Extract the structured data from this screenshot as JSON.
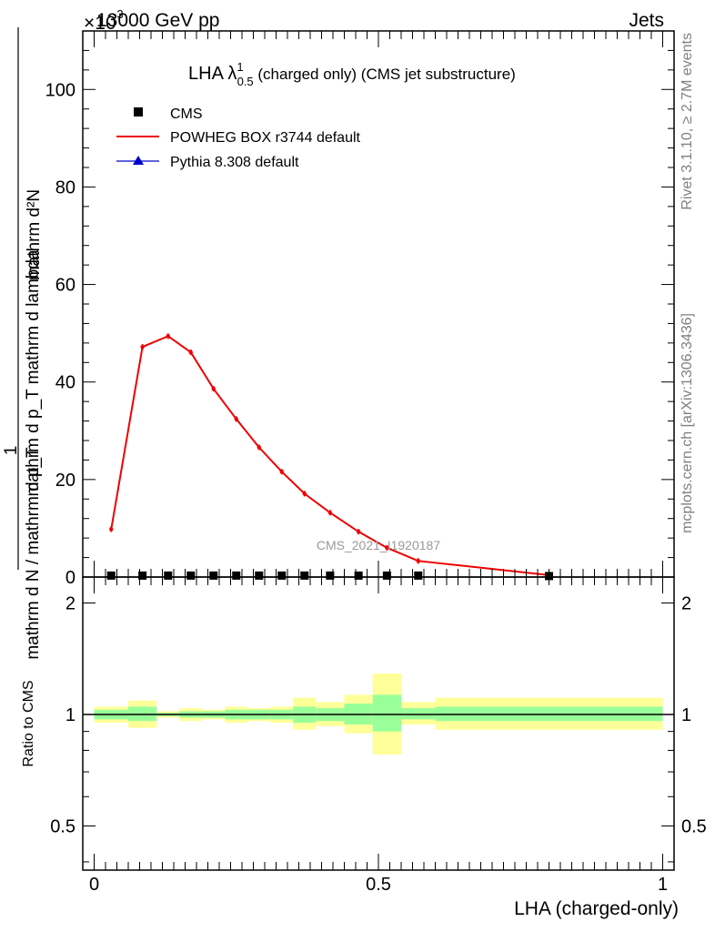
{
  "header": {
    "left": "13000 GeV pp",
    "right": "Jets",
    "scale_marker": "×10",
    "scale_exponent": "-3"
  },
  "side": {
    "rivet": "Rivet 3.1.10, ≥ 2.7M events",
    "mcplots": "mcplots.cern.ch [arXiv:1306.3436]"
  },
  "chart_data": [
    {
      "type": "line",
      "title_main": "LHA λ",
      "title_sup": "1",
      "title_sub": "0.5",
      "title_rest": " (charged only) (CMS jet substructure)",
      "ylabel_numerator": "mathrm d²N",
      "ylabel_denominator": "mathrm d p_T mathrm d lambda",
      "ylabel_prefix_num": "1",
      "ylabel_prefix_den": "mathrm d N / mathrm d p_T",
      "y_scale_note": "×10^-3",
      "ylim": [
        0,
        112
      ],
      "xlim": [
        -0.02,
        1.02
      ],
      "yticks": [
        0,
        20,
        40,
        60,
        80,
        100
      ],
      "watermark": "CMS_2021_I1920187",
      "legend_position": "top-left",
      "series": [
        {
          "name": "CMS",
          "color": "#000000",
          "marker": "square",
          "x": [
            0.03,
            0.085,
            0.13,
            0.17,
            0.21,
            0.25,
            0.29,
            0.33,
            0.37,
            0.415,
            0.465,
            0.515,
            0.57,
            0.8
          ],
          "y": [
            0.3,
            0.3,
            0.3,
            0.3,
            0.3,
            0.3,
            0.3,
            0.3,
            0.3,
            0.3,
            0.3,
            0.3,
            0.3,
            0.2
          ]
        },
        {
          "name": "POWHEG BOX r3744 default",
          "color": "#ee0000",
          "marker": "line",
          "x": [
            0.03,
            0.085,
            0.13,
            0.17,
            0.21,
            0.25,
            0.29,
            0.33,
            0.37,
            0.415,
            0.465,
            0.515,
            0.57,
            0.8
          ],
          "y": [
            9.8,
            47.2,
            49.4,
            46.1,
            38.6,
            32.4,
            26.6,
            21.6,
            17.1,
            13.2,
            9.3,
            6.0,
            3.3,
            0.4
          ]
        },
        {
          "name": "Pythia 8.308 default",
          "color": "#0000cc",
          "marker": "triangle",
          "x": [],
          "y": []
        }
      ]
    },
    {
      "type": "area",
      "ylabel": "Ratio to CMS",
      "xlabel": "LHA (charged-only)",
      "ylim": [
        0.38,
        2.35
      ],
      "y_log_scale": true,
      "xticks": [
        0,
        0.5,
        1
      ],
      "xtick_labels": [
        "0",
        "0.5",
        "1"
      ],
      "yticks": [
        0.5,
        1,
        2
      ],
      "ytick_labels": [
        "0.5",
        "1",
        "2"
      ],
      "reference": 1,
      "bands": [
        {
          "x0": 0.0,
          "x1": 0.06,
          "green": [
            0.97,
            1.03
          ],
          "yellow": [
            0.95,
            1.05
          ]
        },
        {
          "x0": 0.06,
          "x1": 0.11,
          "green": [
            0.96,
            1.05
          ],
          "yellow": [
            0.92,
            1.09
          ]
        },
        {
          "x0": 0.11,
          "x1": 0.15,
          "green": [
            0.99,
            1.01
          ],
          "yellow": [
            0.98,
            1.02
          ]
        },
        {
          "x0": 0.15,
          "x1": 0.19,
          "green": [
            0.98,
            1.02
          ],
          "yellow": [
            0.96,
            1.04
          ]
        },
        {
          "x0": 0.19,
          "x1": 0.23,
          "green": [
            0.98,
            1.02
          ],
          "yellow": [
            0.97,
            1.03
          ]
        },
        {
          "x0": 0.23,
          "x1": 0.27,
          "green": [
            0.97,
            1.03
          ],
          "yellow": [
            0.95,
            1.05
          ]
        },
        {
          "x0": 0.27,
          "x1": 0.31,
          "green": [
            0.97,
            1.03
          ],
          "yellow": [
            0.96,
            1.04
          ]
        },
        {
          "x0": 0.31,
          "x1": 0.35,
          "green": [
            0.97,
            1.03
          ],
          "yellow": [
            0.95,
            1.05
          ]
        },
        {
          "x0": 0.35,
          "x1": 0.39,
          "green": [
            0.95,
            1.05
          ],
          "yellow": [
            0.91,
            1.11
          ]
        },
        {
          "x0": 0.39,
          "x1": 0.44,
          "green": [
            0.96,
            1.04
          ],
          "yellow": [
            0.93,
            1.08
          ]
        },
        {
          "x0": 0.44,
          "x1": 0.49,
          "green": [
            0.94,
            1.07
          ],
          "yellow": [
            0.89,
            1.13
          ]
        },
        {
          "x0": 0.49,
          "x1": 0.54,
          "green": [
            0.9,
            1.13
          ],
          "yellow": [
            0.78,
            1.29
          ]
        },
        {
          "x0": 0.54,
          "x1": 0.6,
          "green": [
            0.97,
            1.04
          ],
          "yellow": [
            0.94,
            1.08
          ]
        },
        {
          "x0": 0.6,
          "x1": 1.0,
          "green": [
            0.96,
            1.05
          ],
          "yellow": [
            0.91,
            1.11
          ]
        }
      ]
    }
  ]
}
